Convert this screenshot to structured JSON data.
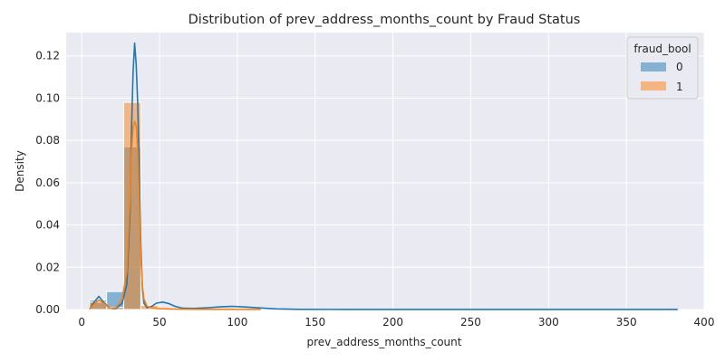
{
  "chart_data": {
    "type": "histogram",
    "title": "Distribution of prev_address_months_count by Fraud Status",
    "xlabel": "prev_address_months_count",
    "ylabel": "Density",
    "xlim": [
      -10,
      400
    ],
    "ylim": [
      0,
      0.131
    ],
    "xticks": [
      0,
      50,
      100,
      150,
      200,
      250,
      300,
      350,
      400
    ],
    "yticks": [
      0.0,
      0.02,
      0.04,
      0.06,
      0.08,
      0.1,
      0.12
    ],
    "ytick_labels": [
      "0.00",
      "0.02",
      "0.04",
      "0.06",
      "0.08",
      "0.10",
      "0.12"
    ],
    "grid": true,
    "background": "#eaeaf2",
    "legend": {
      "title": "fraud_bool",
      "placement": "top-right"
    },
    "bin_edges": [
      5,
      16,
      27,
      38,
      49,
      60
    ],
    "series": [
      {
        "name": "0",
        "color": "#1f77b4",
        "bar_density": [
          0.0045,
          0.0085,
          0.077,
          0.0,
          0.0
        ],
        "kde": [
          [
            5,
            0.0002
          ],
          [
            8,
            0.0035
          ],
          [
            11,
            0.0062
          ],
          [
            14,
            0.0035
          ],
          [
            18,
            0.0006
          ],
          [
            22,
            0.0004
          ],
          [
            26,
            0.003
          ],
          [
            29,
            0.012
          ],
          [
            31,
            0.045
          ],
          [
            32,
            0.085
          ],
          [
            33,
            0.112
          ],
          [
            34,
            0.126
          ],
          [
            35,
            0.116
          ],
          [
            36,
            0.097
          ],
          [
            37,
            0.064
          ],
          [
            38,
            0.03
          ],
          [
            39,
            0.01
          ],
          [
            40,
            0.003
          ],
          [
            42,
            0.0008
          ],
          [
            45,
            0.0015
          ],
          [
            48,
            0.003
          ],
          [
            52,
            0.0035
          ],
          [
            56,
            0.0028
          ],
          [
            60,
            0.0015
          ],
          [
            65,
            0.0006
          ],
          [
            72,
            0.0005
          ],
          [
            80,
            0.0008
          ],
          [
            90,
            0.0013
          ],
          [
            97,
            0.0015
          ],
          [
            105,
            0.0012
          ],
          [
            115,
            0.0007
          ],
          [
            125,
            0.0003
          ],
          [
            140,
            0.0001
          ],
          [
            160,
            5e-05
          ],
          [
            200,
            3e-05
          ],
          [
            250,
            2e-05
          ],
          [
            300,
            1e-05
          ],
          [
            383,
            1e-05
          ]
        ]
      },
      {
        "name": "1",
        "color": "#ff7f0e",
        "bar_density": [
          0.0035,
          0.001,
          0.098,
          0.002,
          0.0
        ],
        "kde": [
          [
            5,
            0.0002
          ],
          [
            8,
            0.0025
          ],
          [
            11,
            0.0045
          ],
          [
            14,
            0.003
          ],
          [
            18,
            0.0006
          ],
          [
            22,
            0.0008
          ],
          [
            26,
            0.005
          ],
          [
            29,
            0.018
          ],
          [
            31,
            0.052
          ],
          [
            32,
            0.075
          ],
          [
            33,
            0.086
          ],
          [
            34,
            0.089
          ],
          [
            35,
            0.087
          ],
          [
            36,
            0.075
          ],
          [
            37,
            0.05
          ],
          [
            38,
            0.025
          ],
          [
            39,
            0.011
          ],
          [
            40,
            0.005
          ],
          [
            42,
            0.0015
          ],
          [
            45,
            0.0008
          ],
          [
            50,
            0.0004
          ],
          [
            60,
            0.0002
          ],
          [
            75,
            0.0001
          ],
          [
            100,
            5e-05
          ],
          [
            115,
            2e-05
          ]
        ]
      }
    ]
  }
}
